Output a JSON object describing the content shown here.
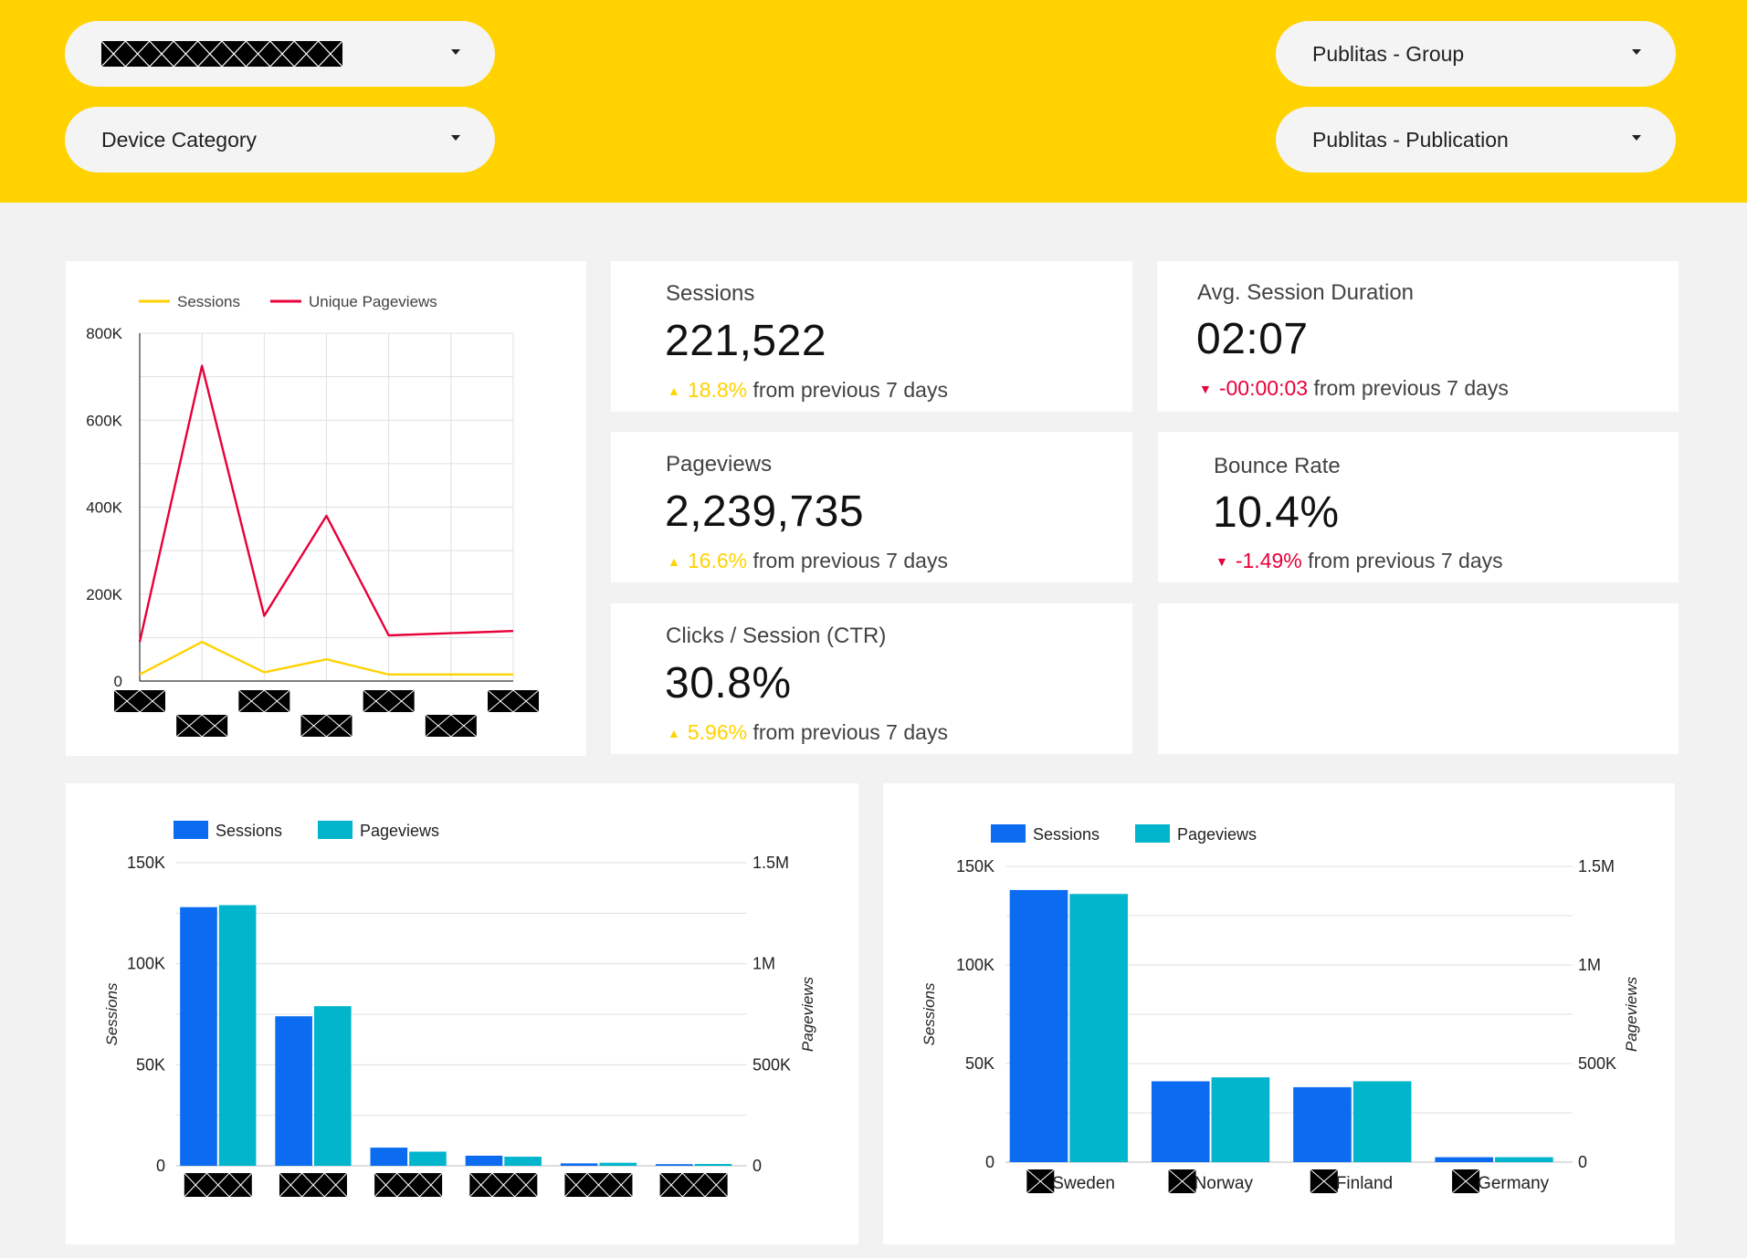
{
  "filters": {
    "device_category": "Device Category",
    "publitas_group": "Publitas - Group",
    "publitas_publication": "Publitas - Publication"
  },
  "colors": {
    "header": "#ffd200",
    "sessions_line": "#ffd200",
    "unique_pageviews_line": "#e8003a",
    "sessions_bar": "#0b6cf2",
    "pageviews_bar": "#00b5cc",
    "positive": "#ffd200",
    "negative": "#e8003a"
  },
  "scorecards": {
    "sessions": {
      "label": "Sessions",
      "value": "221,522",
      "change": "18.8%",
      "suffix": "from previous 7 days",
      "direction": "up"
    },
    "avg_session_duration": {
      "label": "Avg. Session Duration",
      "value": "02:07",
      "change": "-00:00:03",
      "suffix": "from previous 7 days",
      "direction": "down"
    },
    "pageviews": {
      "label": "Pageviews",
      "value": "2,239,735",
      "change": "16.6%",
      "suffix": "from previous 7 days",
      "direction": "up"
    },
    "bounce_rate": {
      "label": "Bounce Rate",
      "value": "10.4%",
      "change": "-1.49%",
      "suffix": "from previous 7 days",
      "direction": "down"
    },
    "ctr": {
      "label": "Clicks / Session (CTR)",
      "value": "30.8%",
      "change": "5.96%",
      "suffix": "from previous 7 days",
      "direction": "up"
    }
  },
  "chart_data": [
    {
      "type": "line",
      "legend": [
        "Sessions",
        "Unique Pageviews"
      ],
      "legend_position": "top",
      "x_labels_redacted": true,
      "x_count": 7,
      "yticks": [
        "800K",
        "600K",
        "400K",
        "200K",
        "0"
      ],
      "ylim": [
        0,
        800000
      ],
      "grid": true,
      "series": [
        {
          "name": "Sessions",
          "values": [
            15000,
            90000,
            20000,
            50000,
            15000,
            15000,
            15000
          ]
        },
        {
          "name": "Unique Pageviews",
          "values": [
            90000,
            725000,
            150000,
            380000,
            105000,
            110000,
            115000
          ]
        }
      ]
    },
    {
      "type": "bar",
      "legend": [
        "Sessions",
        "Pageviews"
      ],
      "legend_position": "top",
      "x_labels_redacted": true,
      "ylabel": "Sessions",
      "y2label": "Pageviews",
      "yticks": [
        "150K",
        "100K",
        "50K",
        "0"
      ],
      "y2ticks": [
        "1.5M",
        "1M",
        "500K",
        "0"
      ],
      "ylim": [
        0,
        150000
      ],
      "y2lim": [
        0,
        1500000
      ],
      "grid": true,
      "series": [
        {
          "name": "Sessions",
          "values": [
            128000,
            74000,
            9000,
            5000,
            1200,
            800
          ]
        },
        {
          "name": "Pageviews",
          "values": [
            1290000,
            790000,
            70000,
            45000,
            15000,
            9000
          ]
        }
      ]
    },
    {
      "type": "bar",
      "legend": [
        "Sessions",
        "Pageviews"
      ],
      "legend_position": "top",
      "categories": [
        "Sweden",
        "Norway",
        "Finland",
        "Germany"
      ],
      "ylabel": "Sessions",
      "y2label": "Pageviews",
      "yticks": [
        "150K",
        "100K",
        "50K",
        "0"
      ],
      "y2ticks": [
        "1.5M",
        "1M",
        "500K",
        "0"
      ],
      "ylim": [
        0,
        150000
      ],
      "y2lim": [
        0,
        1500000
      ],
      "grid": true,
      "series": [
        {
          "name": "Sessions",
          "values": [
            138000,
            41000,
            38000,
            2500
          ]
        },
        {
          "name": "Pageviews",
          "values": [
            1360000,
            430000,
            410000,
            25000
          ]
        }
      ]
    }
  ]
}
